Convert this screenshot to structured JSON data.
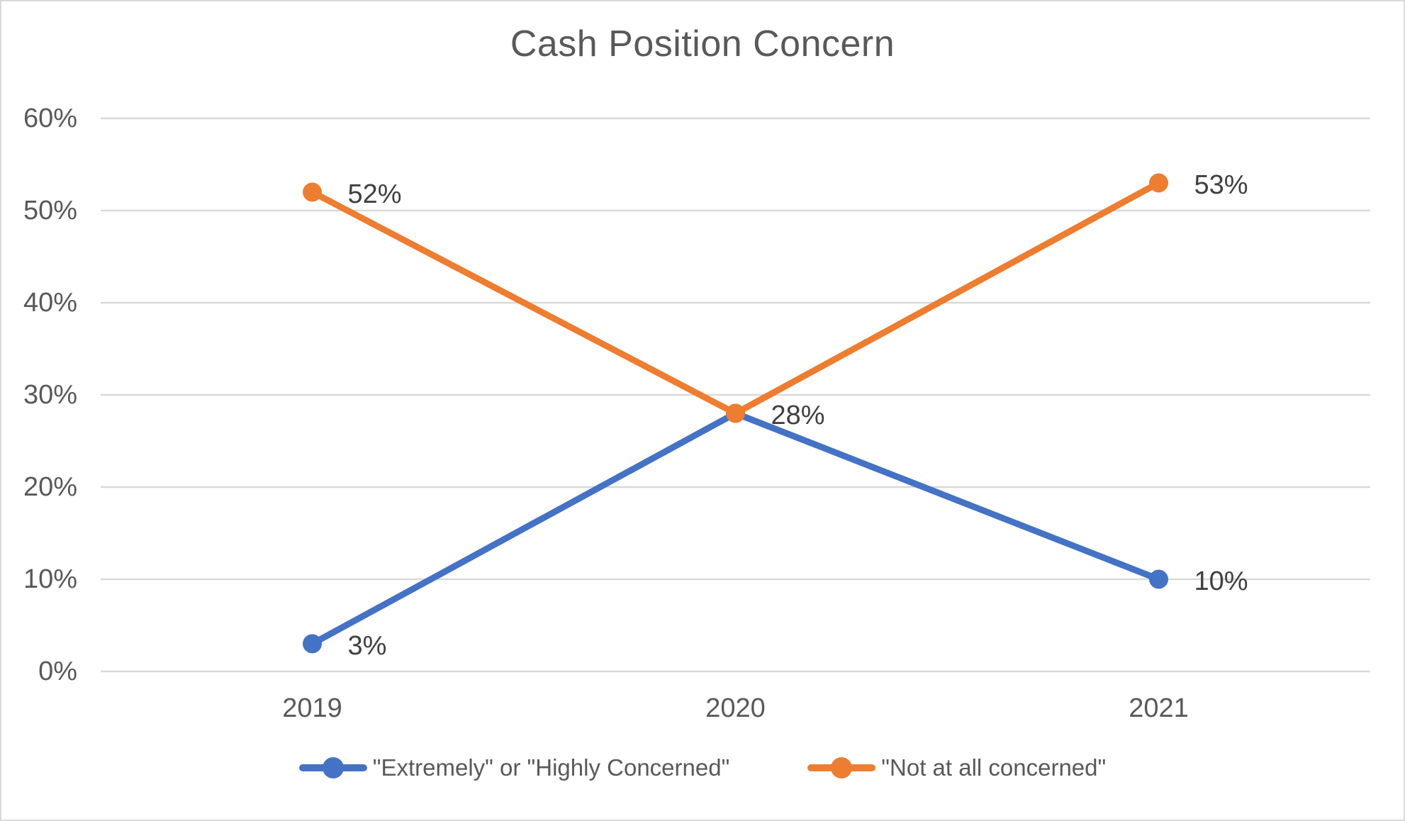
{
  "chart_data": {
    "type": "line",
    "title": "Cash Position Concern",
    "categories": [
      "2019",
      "2020",
      "2021"
    ],
    "series": [
      {
        "name": "\"Extremely\" or \"Highly Concerned\"",
        "color": "#4472C4",
        "values": [
          3,
          28,
          10
        ]
      },
      {
        "name": "\"Not at all concerned\"",
        "color": "#ED7D31",
        "values": [
          52,
          28,
          53
        ]
      }
    ],
    "point_labels": [
      {
        "series": 0,
        "index": 0,
        "text": "3%"
      },
      {
        "series": 0,
        "index": 2,
        "text": "10%"
      },
      {
        "series": 1,
        "index": 0,
        "text": "52%"
      },
      {
        "series": 1,
        "index": 1,
        "text": "28%"
      },
      {
        "series": 1,
        "index": 2,
        "text": "53%"
      }
    ],
    "y_axis": {
      "min": 0,
      "max": 60,
      "ticks": [
        {
          "value": 0,
          "label": "0%"
        },
        {
          "value": 10,
          "label": "10%"
        },
        {
          "value": 20,
          "label": "20%"
        },
        {
          "value": 30,
          "label": "30%"
        },
        {
          "value": 40,
          "label": "40%"
        },
        {
          "value": 50,
          "label": "50%"
        },
        {
          "value": 60,
          "label": "60%"
        }
      ]
    },
    "grid": "horizontal",
    "legend_position": "bottom",
    "colors": {
      "grid": "#D9D9D9",
      "border": "#D9D9D9",
      "axis_text": "#595959",
      "title_text": "#595959",
      "point_label_text": "#404040",
      "background": "#FFFFFF"
    }
  }
}
